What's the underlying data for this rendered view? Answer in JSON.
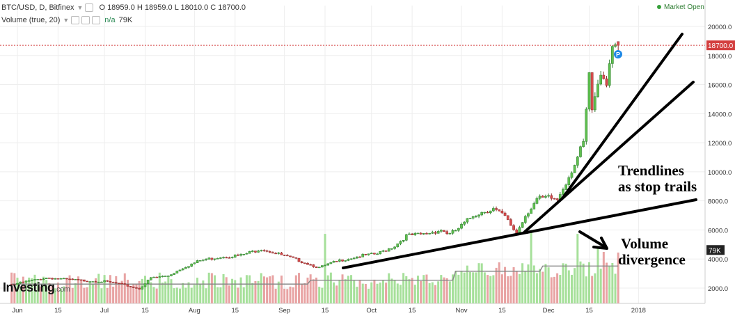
{
  "header": {
    "symbol": "BTC/USD, D, Bitfinex",
    "ohlc": "O 18959.0  H 18959.0  L 18010.0  C 18700.0",
    "volume_label": "Volume (true, 20)",
    "volume_value": "n/a",
    "volume_last": "79K",
    "market_status": "Market Open"
  },
  "logo": {
    "main": "Investing",
    "suffix": ".com"
  },
  "annotations": {
    "trendlines_line1": "Trendlines",
    "trendlines_line2": "as stop trails",
    "volume_line1": "Volume",
    "volume_line2": "divergence",
    "marker": "P"
  },
  "colors": {
    "up": "#5fc04f",
    "down": "#d94c4c",
    "volume_up": "#a6e09a",
    "volume_down": "#e8a3a3",
    "price_line": "#d33f3f",
    "volume_ma": "#888888",
    "marker": "#1e88e5"
  },
  "chart_data": {
    "type": "candlestick",
    "x_ticks": [
      "Jun",
      "15",
      "Jul",
      "15",
      "Aug",
      "15",
      "Sep",
      "15",
      "Oct",
      "15",
      "Nov",
      "15",
      "Dec",
      "15",
      "2018"
    ],
    "price_ticks": [
      "2000.0",
      "4000.0",
      "6000.0",
      "8000.0",
      "10000.0",
      "12000.0",
      "14000.0",
      "16000.0",
      "18000.0",
      "20000.0"
    ],
    "ylim": [
      900,
      21200
    ],
    "last_price_label": "18700.0",
    "last_price": 18700,
    "volume_last_label": "79K",
    "volume_last": 79,
    "series_anchors": [
      {
        "day": -2,
        "close": 2250
      },
      {
        "day": 3,
        "close": 2450
      },
      {
        "day": 10,
        "close": 2700
      },
      {
        "day": 17,
        "close": 2600
      },
      {
        "day": 24,
        "close": 2500
      },
      {
        "day": 30,
        "close": 2450
      },
      {
        "day": 35,
        "close": 2300
      },
      {
        "day": 42,
        "close": 1950
      },
      {
        "day": 46,
        "close": 2700
      },
      {
        "day": 52,
        "close": 2850
      },
      {
        "day": 57,
        "close": 3400
      },
      {
        "day": 63,
        "close": 3900
      },
      {
        "day": 70,
        "close": 4150
      },
      {
        "day": 77,
        "close": 4250
      },
      {
        "day": 84,
        "close": 4700
      },
      {
        "day": 89,
        "close": 4400
      },
      {
        "day": 92,
        "close": 4200
      },
      {
        "day": 97,
        "close": 3900
      },
      {
        "day": 104,
        "close": 3400
      },
      {
        "day": 108,
        "close": 3700
      },
      {
        "day": 112,
        "close": 3950
      },
      {
        "day": 118,
        "close": 4200
      },
      {
        "day": 124,
        "close": 4350
      },
      {
        "day": 130,
        "close": 4900
      },
      {
        "day": 134,
        "close": 5600
      },
      {
        "day": 140,
        "close": 5700
      },
      {
        "day": 146,
        "close": 6000
      },
      {
        "day": 149,
        "close": 5700
      },
      {
        "day": 152,
        "close": 6100
      },
      {
        "day": 157,
        "close": 7000
      },
      {
        "day": 161,
        "close": 7300
      },
      {
        "day": 164,
        "close": 7450
      },
      {
        "day": 168,
        "close": 6900
      },
      {
        "day": 170,
        "close": 6300
      },
      {
        "day": 172,
        "close": 5800
      },
      {
        "day": 175,
        "close": 7000
      },
      {
        "day": 179,
        "close": 8100
      },
      {
        "day": 183,
        "close": 8200
      },
      {
        "day": 186,
        "close": 8100
      },
      {
        "day": 190,
        "close": 9700
      },
      {
        "day": 193,
        "close": 11000
      },
      {
        "day": 195,
        "close": 11900
      },
      {
        "day": 197,
        "close": 16500
      },
      {
        "day": 198,
        "close": 14200
      },
      {
        "day": 200,
        "close": 15800
      },
      {
        "day": 201,
        "close": 17000
      },
      {
        "day": 203,
        "close": 16200
      },
      {
        "day": 205,
        "close": 18800
      },
      {
        "day": 206,
        "close": 19100
      },
      {
        "day": 207,
        "close": 18700
      }
    ],
    "volume_spikes_in_thousands": [
      {
        "day": 106,
        "value": 108
      },
      {
        "day": 177,
        "value": 110
      },
      {
        "day": 193,
        "value": 108
      },
      {
        "day": 200,
        "value": 88
      },
      {
        "day": 202,
        "value": 80
      }
    ]
  }
}
